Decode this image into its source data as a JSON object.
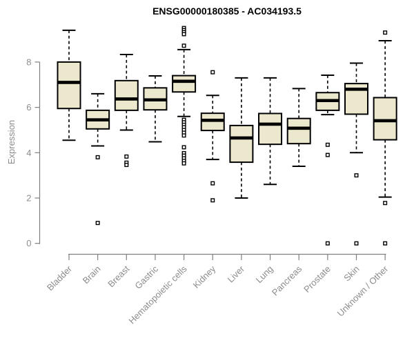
{
  "chart_data": {
    "type": "boxplot",
    "title": "ENSG00000180385 - AC034193.5",
    "ylabel": "Expression",
    "xlabel": "",
    "yticks": [
      0,
      2,
      4,
      6,
      8
    ],
    "ylim": [
      -0.3,
      9.6
    ],
    "grid": false,
    "legend": false,
    "categories": [
      "Bladder",
      "Brain",
      "Breast",
      "Gastric",
      "Hematopoietic cells",
      "Kidney",
      "Liver",
      "Lung",
      "Pancreas",
      "Prostate",
      "Skin",
      "Unknown / Other"
    ],
    "boxes": [
      {
        "category": "Bladder",
        "low": 4.55,
        "q1": 5.95,
        "median": 7.1,
        "q3": 8.0,
        "high": 9.4,
        "outliers": []
      },
      {
        "category": "Brain",
        "low": 4.3,
        "q1": 5.05,
        "median": 5.45,
        "q3": 5.87,
        "high": 6.6,
        "outliers": [
          3.8,
          0.9
        ]
      },
      {
        "category": "Breast",
        "low": 5.0,
        "q1": 5.87,
        "median": 6.37,
        "q3": 7.18,
        "high": 8.33,
        "outliers": [
          3.83,
          3.56,
          3.46
        ]
      },
      {
        "category": "Gastric",
        "low": 4.48,
        "q1": 5.89,
        "median": 6.33,
        "q3": 6.86,
        "high": 7.39,
        "outliers": []
      },
      {
        "category": "Hematopoietic cells",
        "low": 5.6,
        "q1": 6.68,
        "median": 7.15,
        "q3": 7.4,
        "high": 8.55,
        "outliers": [
          9.5,
          9.41,
          9.32,
          9.23,
          8.72,
          5.45,
          5.34,
          5.23,
          5.12,
          5.0,
          4.88,
          4.76,
          4.24,
          3.98,
          3.87,
          3.75,
          3.64,
          3.53
        ]
      },
      {
        "category": "Kidney",
        "low": 3.7,
        "q1": 4.98,
        "median": 5.43,
        "q3": 5.74,
        "high": 6.53,
        "outliers": [
          7.55,
          2.65,
          1.9
        ]
      },
      {
        "category": "Liver",
        "low": 2.0,
        "q1": 3.58,
        "median": 4.65,
        "q3": 5.2,
        "high": 7.3,
        "outliers": []
      },
      {
        "category": "Lung",
        "low": 2.6,
        "q1": 4.37,
        "median": 5.26,
        "q3": 5.73,
        "high": 7.3,
        "outliers": []
      },
      {
        "category": "Pancreas",
        "low": 3.4,
        "q1": 4.4,
        "median": 5.08,
        "q3": 5.51,
        "high": 6.83,
        "outliers": []
      },
      {
        "category": "Prostate",
        "low": 5.68,
        "q1": 5.87,
        "median": 6.3,
        "q3": 6.65,
        "high": 7.42,
        "outliers": [
          4.35,
          3.9,
          0.0
        ]
      },
      {
        "category": "Skin",
        "low": 4.0,
        "q1": 5.7,
        "median": 6.8,
        "q3": 7.05,
        "high": 7.95,
        "outliers": [
          3.0,
          0.0
        ]
      },
      {
        "category": "Unknown / Other",
        "low": 2.04,
        "q1": 4.57,
        "median": 5.41,
        "q3": 6.43,
        "high": 8.94,
        "outliers": [
          9.3,
          1.78,
          0.0
        ]
      }
    ],
    "colors": {
      "box_fill": "#ece8cd",
      "box_border": "#000000",
      "median": "#000000",
      "whisker": "#000000",
      "outlier_fill": "#ffffff",
      "axis": "#7f7f7f",
      "tick_label": "#8c8c8c",
      "title": "#000000",
      "background": "#ffffff"
    }
  }
}
